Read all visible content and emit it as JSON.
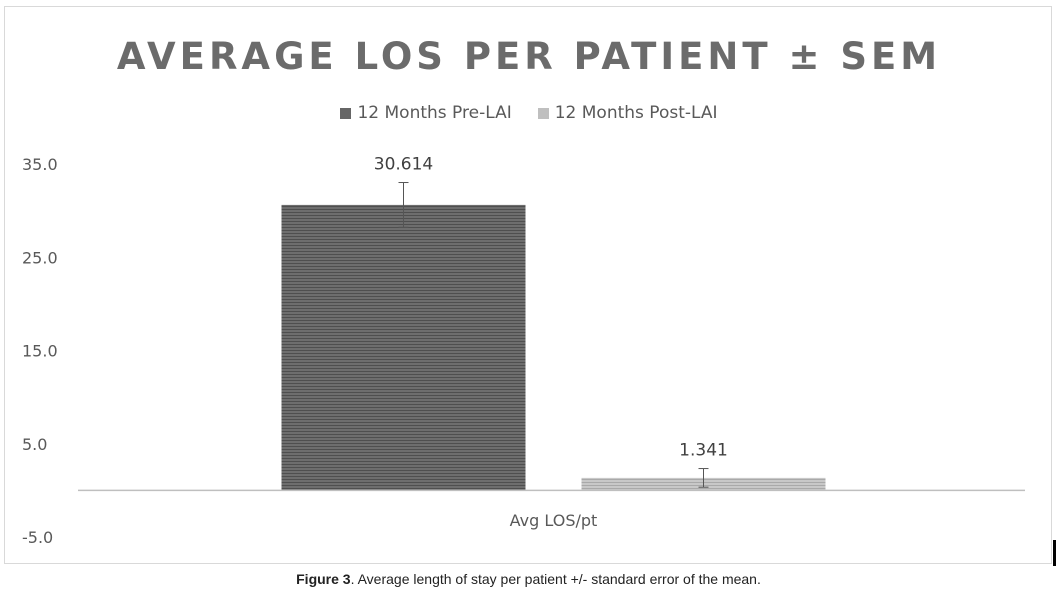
{
  "chart_data": {
    "type": "bar",
    "title": "AVERAGE LOS PER PATIENT ± SEM",
    "categories": [
      "Avg LOS/pt"
    ],
    "series": [
      {
        "name": "12 Months Pre-LAI",
        "values": [
          30.614
        ],
        "error": [
          2.4
        ],
        "data_label": "30.614",
        "color": "#666666"
      },
      {
        "name": "12 Months Post-LAI",
        "values": [
          1.341
        ],
        "error": [
          1.0
        ],
        "data_label": "1.341",
        "color": "#bfbfbf"
      }
    ],
    "y_ticks": [
      "35.0",
      "25.0",
      "15.0",
      "5.0",
      "-5.0"
    ],
    "ylim": [
      -5,
      35
    ],
    "grid": false,
    "legend_position": "top"
  },
  "caption": {
    "label": "Figure 3",
    "text": ". Average length of stay per patient +/- standard error of the mean."
  }
}
